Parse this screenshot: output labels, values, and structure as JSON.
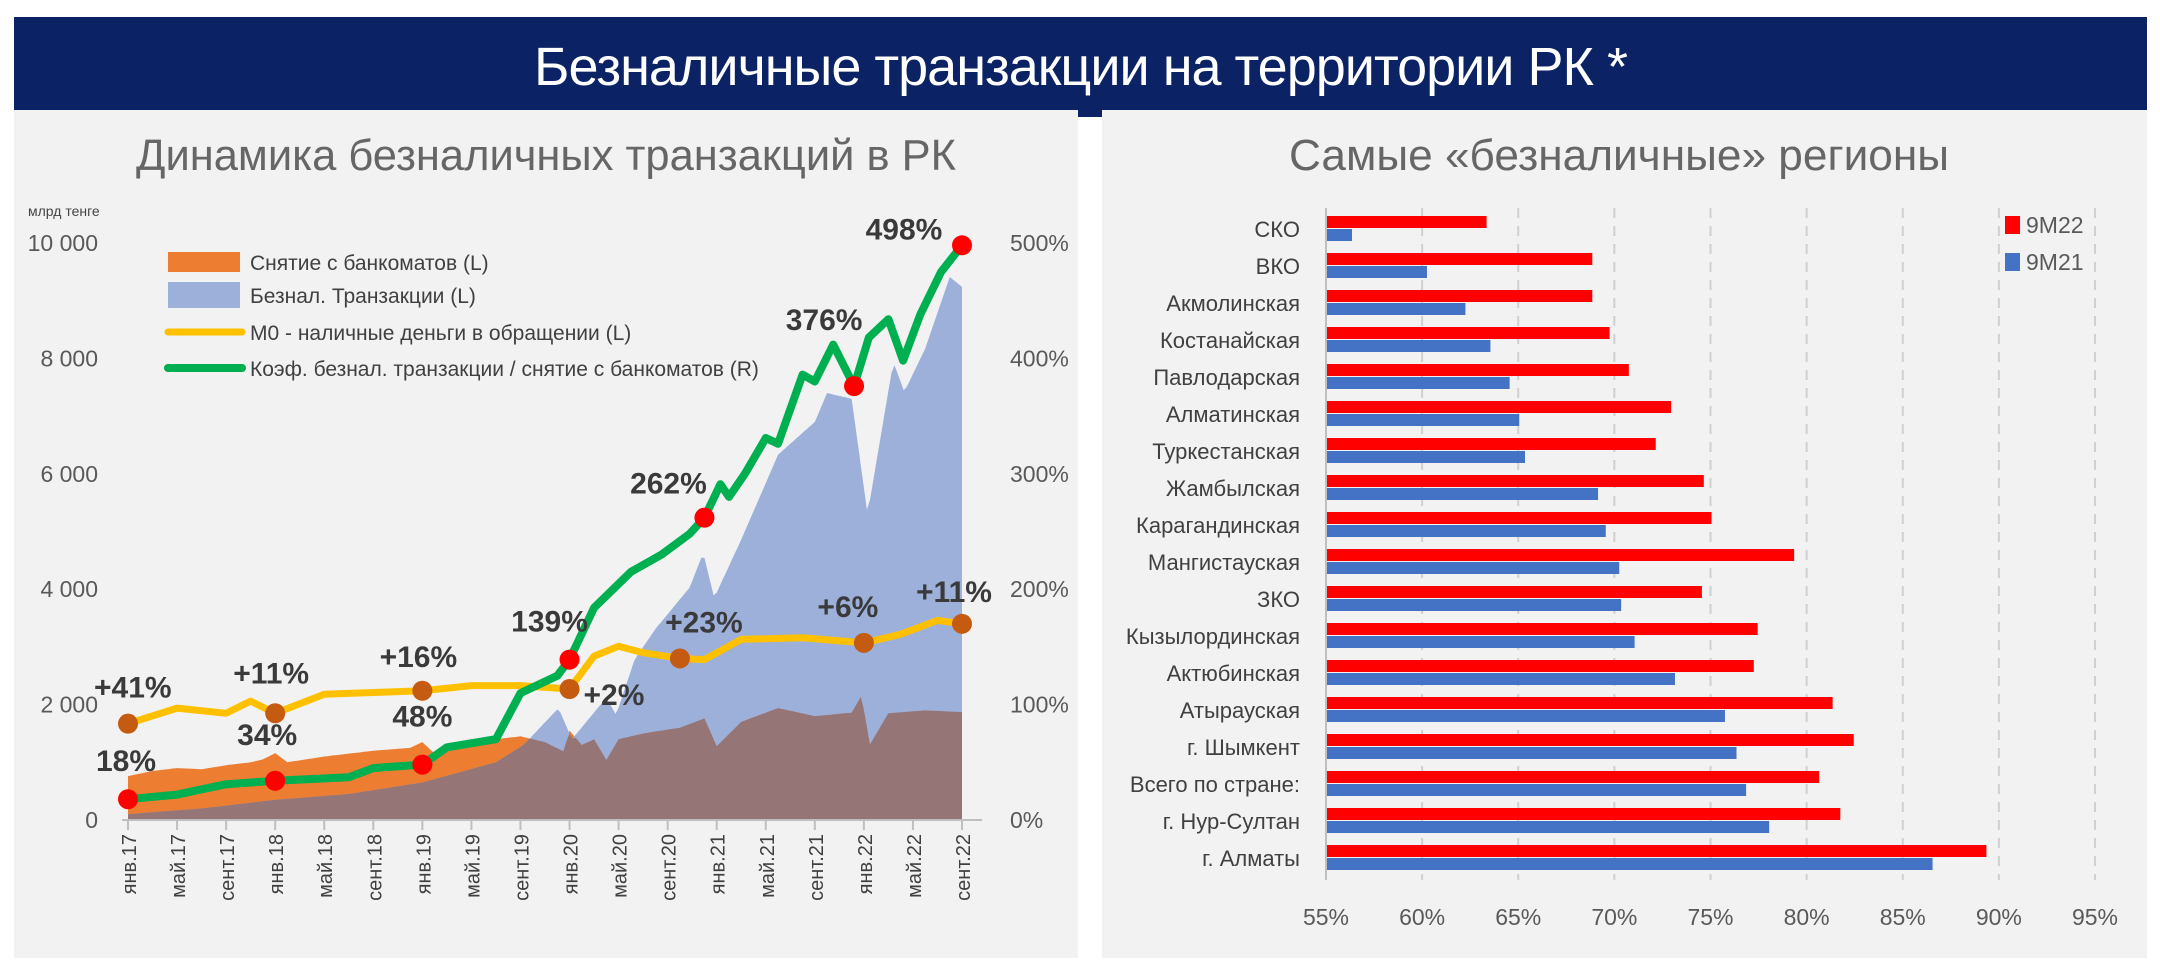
{
  "header": {
    "title": "Безналичные транзакции на территории РК *"
  },
  "chart_data": [
    {
      "type": "area",
      "title": "Динамика безналичных транзакций в РК",
      "ylabel": "млрд тенге",
      "ylim": [
        0,
        10000
      ],
      "y2lim": [
        0,
        500
      ],
      "yticks": [
        "0",
        "2 000",
        "4 000",
        "6 000",
        "8 000",
        "10 000"
      ],
      "y2ticks": [
        "0%",
        "100%",
        "200%",
        "300%",
        "400%",
        "500%"
      ],
      "x_ticks": [
        "янв.17",
        "май.17",
        "сент.17",
        "янв.18",
        "май.18",
        "сент.18",
        "янв.19",
        "май.19",
        "сент.19",
        "янв.20",
        "май.20",
        "сент.20",
        "янв.21",
        "май.21",
        "сент.21",
        "янв.22",
        "май.22",
        "сент.22"
      ],
      "x_note": "monthly index: 0 = янв.17, 68 = сент.22",
      "colors": {
        "withdrawal": "#ed7d31",
        "cashless": "#9db0da",
        "overlap": "#957575",
        "m0": "#ffc000",
        "ratio": "#00b050",
        "marker_red": "#ff0000",
        "marker_brown": "#c55a11"
      },
      "series": [
        {
          "name": "Снятие с банкоматов (L)",
          "key": "withdrawal",
          "axis": "L",
          "points": [
            [
              0,
              760
            ],
            [
              2,
              850
            ],
            [
              4,
              900
            ],
            [
              6,
              880
            ],
            [
              8,
              950
            ],
            [
              10,
              1000
            ],
            [
              11,
              1050
            ],
            [
              12,
              1160
            ],
            [
              13,
              1000
            ],
            [
              16,
              1100
            ],
            [
              20,
              1200
            ],
            [
              23,
              1250
            ],
            [
              24,
              1350
            ],
            [
              25,
              1150
            ],
            [
              28,
              1350
            ],
            [
              32,
              1450
            ],
            [
              34,
              1350
            ],
            [
              35.5,
              1190
            ],
            [
              36,
              1550
            ],
            [
              37,
              1300
            ],
            [
              38,
              1400
            ],
            [
              39,
              1040
            ],
            [
              40,
              1400
            ],
            [
              42,
              1500
            ],
            [
              45,
              1600
            ],
            [
              47,
              1760
            ],
            [
              48,
              1280
            ],
            [
              50,
              1700
            ],
            [
              53,
              1940
            ],
            [
              56,
              1800
            ],
            [
              59,
              1860
            ],
            [
              59.8,
              2150
            ],
            [
              60.5,
              1310
            ],
            [
              62,
              1850
            ],
            [
              65,
              1900
            ],
            [
              68,
              1870
            ]
          ]
        },
        {
          "name": "Безнал. Транзакции (L)",
          "key": "cashless",
          "axis": "L",
          "points": [
            [
              0,
              100
            ],
            [
              6,
              200
            ],
            [
              12,
              350
            ],
            [
              18,
              450
            ],
            [
              24,
              650
            ],
            [
              30,
              1000
            ],
            [
              32.3,
              1310
            ],
            [
              35.1,
              1940
            ],
            [
              36.2,
              1400
            ],
            [
              39,
              2120
            ],
            [
              39.8,
              1820
            ],
            [
              41.3,
              2780
            ],
            [
              43,
              3310
            ],
            [
              45.8,
              4030
            ],
            [
              46.9,
              4630
            ],
            [
              47.8,
              3850
            ],
            [
              50,
              4860
            ],
            [
              53,
              6330
            ],
            [
              56,
              6900
            ],
            [
              57,
              7400
            ],
            [
              59,
              7300
            ],
            [
              60.3,
              5300
            ],
            [
              62.4,
              7940
            ],
            [
              63.3,
              7420
            ],
            [
              65,
              8170
            ],
            [
              67,
              9410
            ],
            [
              68,
              9240
            ]
          ]
        },
        {
          "name": "М0 - наличные деньги в обращении (L)",
          "key": "m0",
          "axis": "L",
          "points": [
            [
              0,
              1670
            ],
            [
              4,
              1940
            ],
            [
              8,
              1850
            ],
            [
              10,
              2060
            ],
            [
              12,
              1850
            ],
            [
              16,
              2180
            ],
            [
              20,
              2210
            ],
            [
              24,
              2240
            ],
            [
              28,
              2330
            ],
            [
              32,
              2330
            ],
            [
              36,
              2270
            ],
            [
              38,
              2840
            ],
            [
              40,
              3010
            ],
            [
              42,
              2900
            ],
            [
              45,
              2800
            ],
            [
              47,
              2780
            ],
            [
              50,
              3130
            ],
            [
              55,
              3160
            ],
            [
              60,
              3070
            ],
            [
              63,
              3220
            ],
            [
              66,
              3460
            ],
            [
              68,
              3400
            ]
          ]
        },
        {
          "name": "Коэф. безнал. транзакции / снятие с банкоматов (R)",
          "key": "ratio",
          "axis": "R",
          "points": [
            [
              0,
              18
            ],
            [
              4,
              22
            ],
            [
              8,
              31
            ],
            [
              12,
              34
            ],
            [
              18,
              37
            ],
            [
              20,
              45
            ],
            [
              24,
              48
            ],
            [
              26,
              63
            ],
            [
              30,
              70
            ],
            [
              32,
              110
            ],
            [
              35,
              125
            ],
            [
              36,
              139
            ],
            [
              38,
              184
            ],
            [
              41,
              215
            ],
            [
              43.5,
              230
            ],
            [
              45.8,
              248
            ],
            [
              47,
              262
            ],
            [
              48.3,
              291
            ],
            [
              49,
              280
            ],
            [
              50.3,
              300
            ],
            [
              52,
              331
            ],
            [
              53,
              326
            ],
            [
              55,
              386
            ],
            [
              56,
              380
            ],
            [
              57.5,
              412
            ],
            [
              59.2,
              376
            ],
            [
              60.4,
              418
            ],
            [
              62,
              434
            ],
            [
              63.2,
              398
            ],
            [
              64.6,
              438
            ],
            [
              66.3,
              475
            ],
            [
              68,
              498
            ]
          ]
        }
      ],
      "annotations": [
        {
          "series": "ratio",
          "x": 0,
          "label": "18%"
        },
        {
          "series": "ratio",
          "x": 12,
          "label": "34%"
        },
        {
          "series": "ratio",
          "x": 24,
          "label": "48%"
        },
        {
          "series": "ratio",
          "x": 36,
          "label": "139%"
        },
        {
          "series": "ratio",
          "x": 47,
          "label": "262%"
        },
        {
          "series": "ratio",
          "x": 59.2,
          "label": "376%"
        },
        {
          "series": "ratio",
          "x": 68,
          "label": "498%"
        },
        {
          "series": "m0",
          "x": 0,
          "label": "+41%"
        },
        {
          "series": "m0",
          "x": 12,
          "label": "+11%"
        },
        {
          "series": "m0",
          "x": 24,
          "label": "+16%"
        },
        {
          "series": "m0",
          "x": 36,
          "label": "+2%"
        },
        {
          "series": "m0",
          "x": 45,
          "label": "+23%"
        },
        {
          "series": "m0",
          "x": 60,
          "label": "+6%"
        },
        {
          "series": "m0",
          "x": 68,
          "label": "+11%"
        }
      ],
      "legend": "top-left"
    },
    {
      "type": "bar",
      "orientation": "horizontal",
      "title": "Самые «безналичные» регионы",
      "xlim": [
        55,
        95
      ],
      "xticks": [
        "55%",
        "60%",
        "65%",
        "70%",
        "75%",
        "80%",
        "85%",
        "90%",
        "95%"
      ],
      "categories": [
        "СКО",
        "ВКО",
        "Акмолинская",
        "Костанайская",
        "Павлодарская",
        "Алматинская",
        "Туркестанская",
        "Жамбылская",
        "Карагандинская",
        "Мангистауская",
        "ЗКО",
        "Кызылординская",
        "Актюбинская",
        "Атырауская",
        "г. Шымкент",
        "Всего по стране:",
        "г. Нур-Султан",
        "г. Алматы"
      ],
      "series": [
        {
          "name": "9М22",
          "color": "#ff0000",
          "values": [
            63.3,
            68.8,
            68.8,
            69.7,
            70.7,
            72.9,
            72.1,
            74.6,
            75.0,
            79.3,
            74.5,
            77.4,
            77.2,
            81.3,
            82.4,
            80.6,
            81.7,
            89.3
          ]
        },
        {
          "name": "9М21",
          "color": "#4472c4",
          "values": [
            56.3,
            60.2,
            62.2,
            63.5,
            64.5,
            65.0,
            65.3,
            69.1,
            69.5,
            70.2,
            70.3,
            71.0,
            73.1,
            75.7,
            76.3,
            76.8,
            78.0,
            86.5
          ]
        }
      ],
      "grid": "vertical-dashed",
      "legend": "top-right"
    }
  ]
}
